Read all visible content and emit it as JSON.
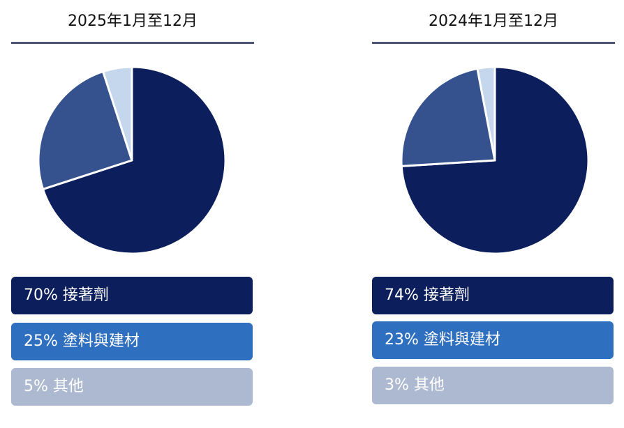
{
  "chart_data": [
    {
      "type": "pie",
      "title": "2025年1月至12月",
      "slices": [
        {
          "label": "70% 接著劑",
          "value": 70,
          "color": "#0c1f5c"
        },
        {
          "label": "25% 塗料與建材",
          "value": 25,
          "color": "#35528f"
        },
        {
          "label": "5% 其他",
          "value": 5,
          "color": "#c5d7ec"
        }
      ],
      "legend_colors": [
        "#0c1f5c",
        "#2f6fbf",
        "#adb8d1"
      ]
    },
    {
      "type": "pie",
      "title": "2024年1月至12月",
      "slices": [
        {
          "label": "74% 接著劑",
          "value": 74,
          "color": "#0c1f5c"
        },
        {
          "label": "23% 塗料與建材",
          "value": 23,
          "color": "#35528f"
        },
        {
          "label": "3% 其他",
          "value": 3,
          "color": "#c5d7ec"
        }
      ],
      "legend_colors": [
        "#0c1f5c",
        "#2f6fbf",
        "#adb8d1"
      ]
    }
  ]
}
